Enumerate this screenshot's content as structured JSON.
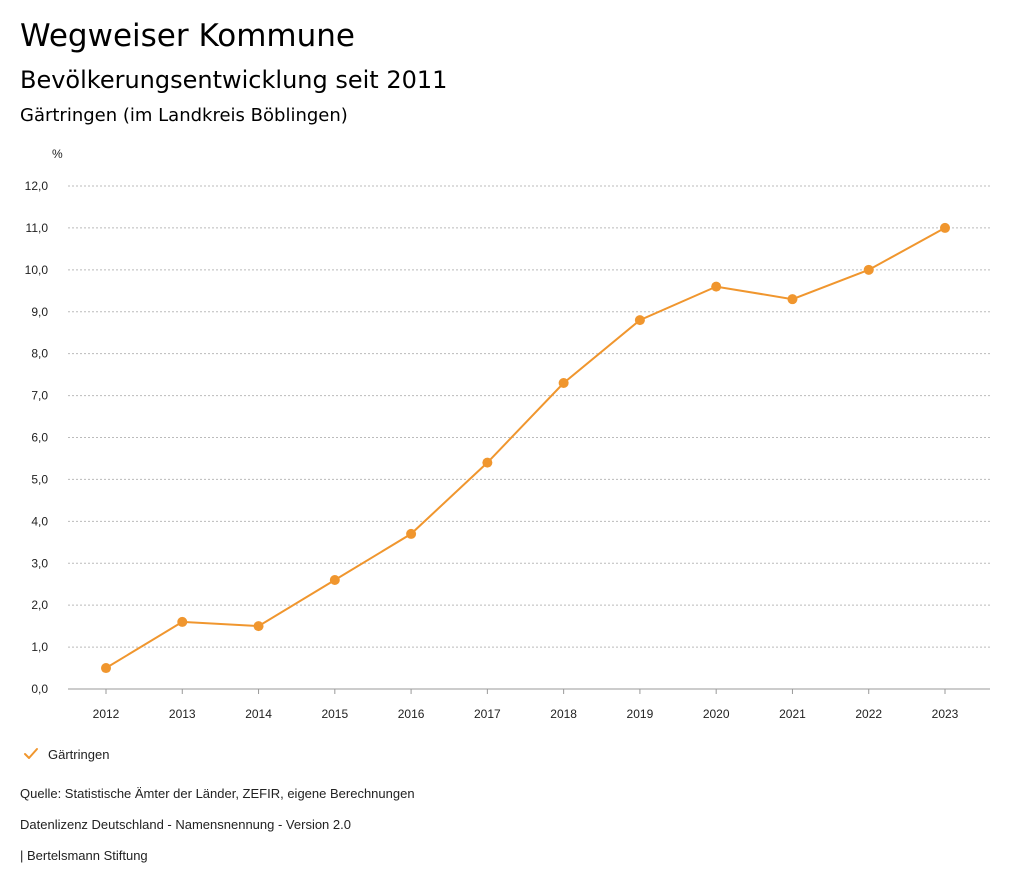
{
  "header": {
    "title": "Wegweiser Kommune",
    "subtitle": "Bevölkerungsentwicklung seit 2011",
    "region": "Gärtringen (im Landkreis Böblingen)"
  },
  "legend": {
    "icon": "check-icon"
  },
  "footer": {
    "source": "Quelle: Statistische Ämter der Länder, ZEFIR, eigene Berechnungen",
    "license": "Datenlizenz Deutschland - Namensnennung - Version 2.0",
    "publisher": "| Bertelsmann Stiftung"
  },
  "chart_data": {
    "type": "line",
    "title": "Bevölkerungsentwicklung seit 2011",
    "ylabel": "%",
    "xlabel": "",
    "ylim": [
      0,
      12
    ],
    "grid": true,
    "legend_position": "bottom-left",
    "x": [
      "2012",
      "2013",
      "2014",
      "2015",
      "2016",
      "2017",
      "2018",
      "2019",
      "2020",
      "2021",
      "2022",
      "2023"
    ],
    "y_ticks": [
      "0,0",
      "1,0",
      "2,0",
      "3,0",
      "4,0",
      "5,0",
      "6,0",
      "7,0",
      "8,0",
      "9,0",
      "10,0",
      "11,0",
      "12,0"
    ],
    "series": [
      {
        "name": "Gärtringen",
        "color": "#f0962e",
        "values": [
          0.5,
          1.6,
          1.5,
          2.6,
          3.7,
          5.4,
          7.3,
          8.8,
          9.6,
          9.3,
          10.0,
          11.0
        ]
      }
    ]
  }
}
